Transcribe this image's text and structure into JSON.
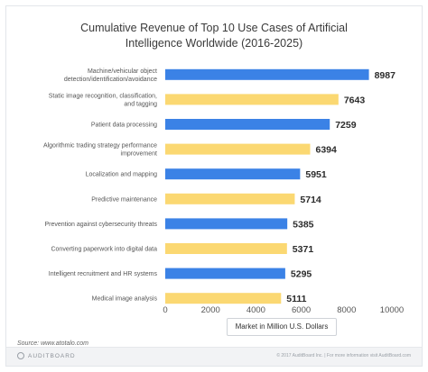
{
  "chart_data": {
    "type": "bar",
    "orientation": "horizontal",
    "title": "Cumulative Revenue of Top 10 Use Cases of Artificial\nIntelligence Worldwide (2016-2025)",
    "xlabel": "Market in Million U.S. Dollars",
    "ylabel": "",
    "xlim": [
      0,
      10000
    ],
    "xticks": [
      0,
      2000,
      4000,
      6000,
      8000,
      10000
    ],
    "grid": false,
    "categories": [
      "Machine/vehicular object detection/identification/avoidance",
      "Static image recognition, classification, and tagging",
      "Patient data processing",
      "Algorithmic trading strategy performance improvement",
      "Localization and mapping",
      "Predictive maintenance",
      "Prevention against cybersecurity threats",
      "Converting paperwork into digital data",
      "Intelligent recruitment and HR systems",
      "Medical image analysis"
    ],
    "category_lines": [
      [
        "Machine/vehicular object",
        "detection/identification/avoidance"
      ],
      [
        "Static image recognition, classification,",
        "and tagging"
      ],
      [
        "Patient data processing"
      ],
      [
        "Algorithmic trading strategy performance",
        "improvement"
      ],
      [
        "Localization and mapping"
      ],
      [
        "Predictive maintenance"
      ],
      [
        "Prevention against cybersecurity threats"
      ],
      [
        "Converting paperwork into digital data"
      ],
      [
        "Intelligent recruitment and HR systems"
      ],
      [
        "Medical image analysis"
      ]
    ],
    "values": [
      8987,
      7643,
      7259,
      6394,
      5951,
      5714,
      5385,
      5371,
      5295,
      5111
    ],
    "bar_colors": [
      "#3b82e6",
      "#fbd872",
      "#3b82e6",
      "#fbd872",
      "#3b82e6",
      "#fbd872",
      "#3b82e6",
      "#fbd872",
      "#3b82e6",
      "#fbd872"
    ]
  },
  "source": "Source: www.atotalo.com",
  "footer": {
    "brand": "AUDITBOARD",
    "right_text": "© 2017 AuditBoard Inc.  |  For more information visit AuditBoard.com"
  }
}
